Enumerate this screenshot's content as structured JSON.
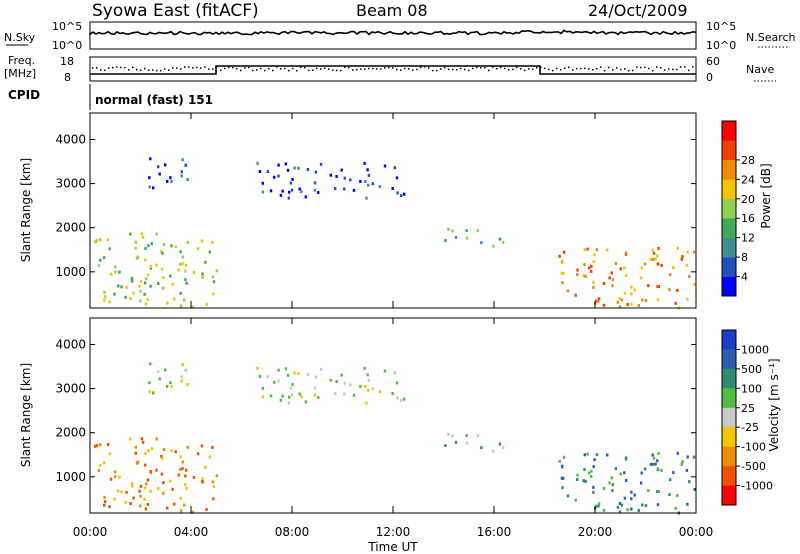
{
  "header": {
    "station": "Syowa East (fitACF)",
    "beam": "Beam 08",
    "date": "24/Oct/2009"
  },
  "top_panels": {
    "nsky_label": "N.Sky",
    "nsky_ticks": [
      "10^5",
      "10^0"
    ],
    "nsearch_label": "N.Search",
    "nsearch_ticks": [
      "10^5",
      "10^0"
    ],
    "freq_label": "Freq.",
    "freq_unit": "[MHz]",
    "freq_ticks": [
      "18",
      "8"
    ],
    "nave_label": "Nave",
    "nave_ticks": [
      "60",
      "0"
    ],
    "cpid_label": "CPID",
    "cpid_text": "normal (fast) 151"
  },
  "x_axis": {
    "label": "Time UT",
    "ticks": [
      "00:00",
      "04:00",
      "08:00",
      "12:00",
      "16:00",
      "20:00",
      "00:00"
    ]
  },
  "chart_data": [
    {
      "type": "heatmap",
      "quantity": "Power",
      "ylabel": "Slant Range [km]",
      "yticks": [
        1000,
        2000,
        3000,
        4000
      ],
      "ylim": [
        180,
        4600
      ],
      "colorbar_label": "Power [dB]",
      "colorbar_ticks": [
        "4",
        "8",
        "12",
        "16",
        "20",
        "24",
        "28"
      ],
      "colors": [
        "#0000ff",
        "#2050c0",
        "#3f8f8f",
        "#3faa5a",
        "#8fd14f",
        "#f5c400",
        "#f08a00",
        "#f04000",
        "#ff0000"
      ],
      "regions": [
        {
          "t": [
            0.0,
            5.0
          ],
          "r": [
            200,
            1900
          ],
          "level": 4
        },
        {
          "t": [
            2.3,
            4.3
          ],
          "r": [
            2900,
            3600
          ],
          "level": 1
        },
        {
          "t": [
            6.5,
            12.5
          ],
          "r": [
            2700,
            3500
          ],
          "level": 1
        },
        {
          "t": [
            14.0,
            16.5
          ],
          "r": [
            1600,
            2000
          ],
          "level": 3
        },
        {
          "t": [
            18.5,
            24.0
          ],
          "r": [
            200,
            1600
          ],
          "level": 6
        }
      ]
    },
    {
      "type": "heatmap",
      "quantity": "Velocity",
      "ylabel": "Slant Range [km]",
      "yticks": [
        1000,
        2000,
        3000,
        4000
      ],
      "ylim": [
        180,
        4600
      ],
      "colorbar_label": "Velocity [m s⁻¹]",
      "colorbar_ticks": [
        "1000",
        "500",
        "100",
        "25",
        "-25",
        "-100",
        "-500",
        "-1000"
      ],
      "colors": [
        "#1a3cc8",
        "#2a5fb0",
        "#2f8b74",
        "#4fbe3f",
        "#c8c8c8",
        "#f5c400",
        "#f08a00",
        "#f05000",
        "#ff0000"
      ],
      "regions": [
        {
          "t": [
            0.0,
            5.0
          ],
          "r": [
            200,
            1900
          ],
          "level": 6
        },
        {
          "t": [
            2.3,
            4.3
          ],
          "r": [
            2900,
            3600
          ],
          "level": 4
        },
        {
          "t": [
            6.5,
            12.5
          ],
          "r": [
            2700,
            3500
          ],
          "level": 4
        },
        {
          "t": [
            14.0,
            16.5
          ],
          "r": [
            1600,
            2000
          ],
          "level": 3
        },
        {
          "t": [
            18.5,
            24.0
          ],
          "r": [
            200,
            1600
          ],
          "level": 2
        }
      ]
    }
  ]
}
